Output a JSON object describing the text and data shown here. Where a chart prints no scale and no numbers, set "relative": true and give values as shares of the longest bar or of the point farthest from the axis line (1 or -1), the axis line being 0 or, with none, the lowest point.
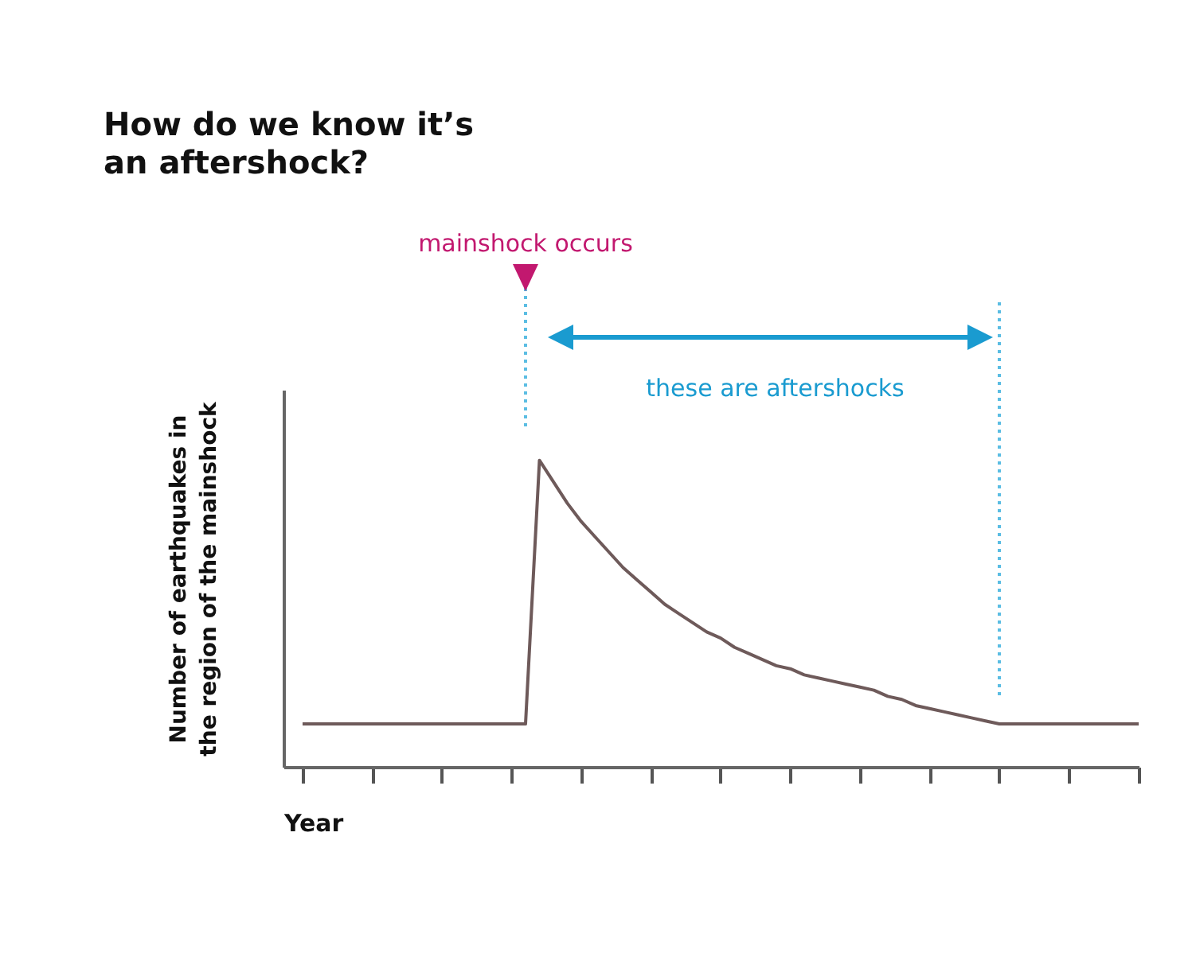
{
  "chart_data": {
    "type": "line",
    "title": "How do we know it’s an aftershock?",
    "xlabel": "Year",
    "ylabel": "Number of earthquakes in the region of the mainshock",
    "categories": [
      null,
      null,
      null,
      null,
      null,
      null,
      null,
      null,
      null,
      null,
      null,
      null,
      null,
      null,
      null,
      null,
      null,
      null,
      null,
      null,
      null,
      null,
      null,
      null,
      null,
      null,
      null,
      null,
      null,
      null,
      null,
      null,
      null,
      null,
      null,
      null,
      null,
      null,
      null,
      null,
      null,
      null,
      null,
      null,
      null,
      null,
      null,
      null,
      null,
      null,
      null,
      null,
      null,
      null,
      null,
      null,
      null,
      null,
      null,
      null,
      null
    ],
    "series": [
      {
        "color": "#6e5a5a",
        "values": [
          0.14,
          0.14,
          0.14,
          0.14,
          0.14,
          0.14,
          0.14,
          0.14,
          0.14,
          0.14,
          0.14,
          0.14,
          0.14,
          0.14,
          0.14,
          0.14,
          0.14,
          1.0,
          0.93,
          0.86,
          0.8,
          0.75,
          0.7,
          0.65,
          0.61,
          0.57,
          0.53,
          0.5,
          0.47,
          0.44,
          0.42,
          0.39,
          0.37,
          0.35,
          0.33,
          0.32,
          0.3,
          0.29,
          0.28,
          0.27,
          0.26,
          0.25,
          0.23,
          0.22,
          0.2,
          0.19,
          0.18,
          0.17,
          0.16,
          0.15,
          0.14,
          0.14,
          0.14,
          0.14,
          0.14,
          0.14,
          0.14,
          0.14,
          0.14,
          0.14,
          0.14
        ]
      }
    ],
    "relative": true,
    "annotations": [
      "mainshock occurs",
      "these are aftershocks"
    ],
    "line_style": "solid"
  }
}
